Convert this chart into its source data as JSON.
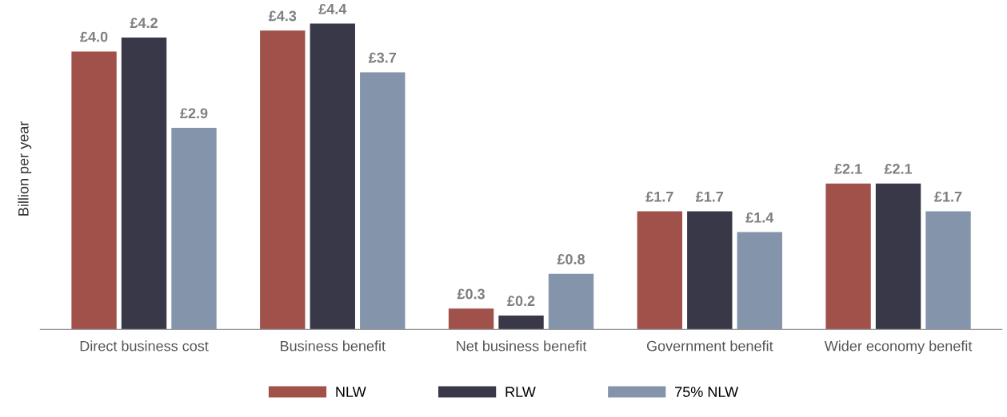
{
  "chart_data": {
    "type": "bar",
    "ylabel": "Billion per year",
    "categories": [
      "Direct business cost",
      "Business benefit",
      "Net business benefit",
      "Government benefit",
      "Wider economy benefit"
    ],
    "series": [
      {
        "name": "NLW",
        "color": "#a0524a",
        "values": [
          4.0,
          4.3,
          0.3,
          1.7,
          2.1
        ],
        "value_labels": [
          "£4.0",
          "£4.3",
          "£0.3",
          "£1.7",
          "£2.1"
        ]
      },
      {
        "name": "RLW",
        "color": "#393848",
        "values": [
          4.2,
          4.4,
          0.2,
          1.7,
          2.1
        ],
        "value_labels": [
          "£4.2",
          "£4.4",
          "£0.2",
          "£1.7",
          "£2.1"
        ]
      },
      {
        "name": "75% NLW",
        "color": "#8494ab",
        "values": [
          2.9,
          3.7,
          0.8,
          1.4,
          1.7
        ],
        "value_labels": [
          "£2.9",
          "£3.7",
          "£0.8",
          "£1.4",
          "£1.7"
        ]
      }
    ],
    "legend": "bottom",
    "grid": false
  }
}
